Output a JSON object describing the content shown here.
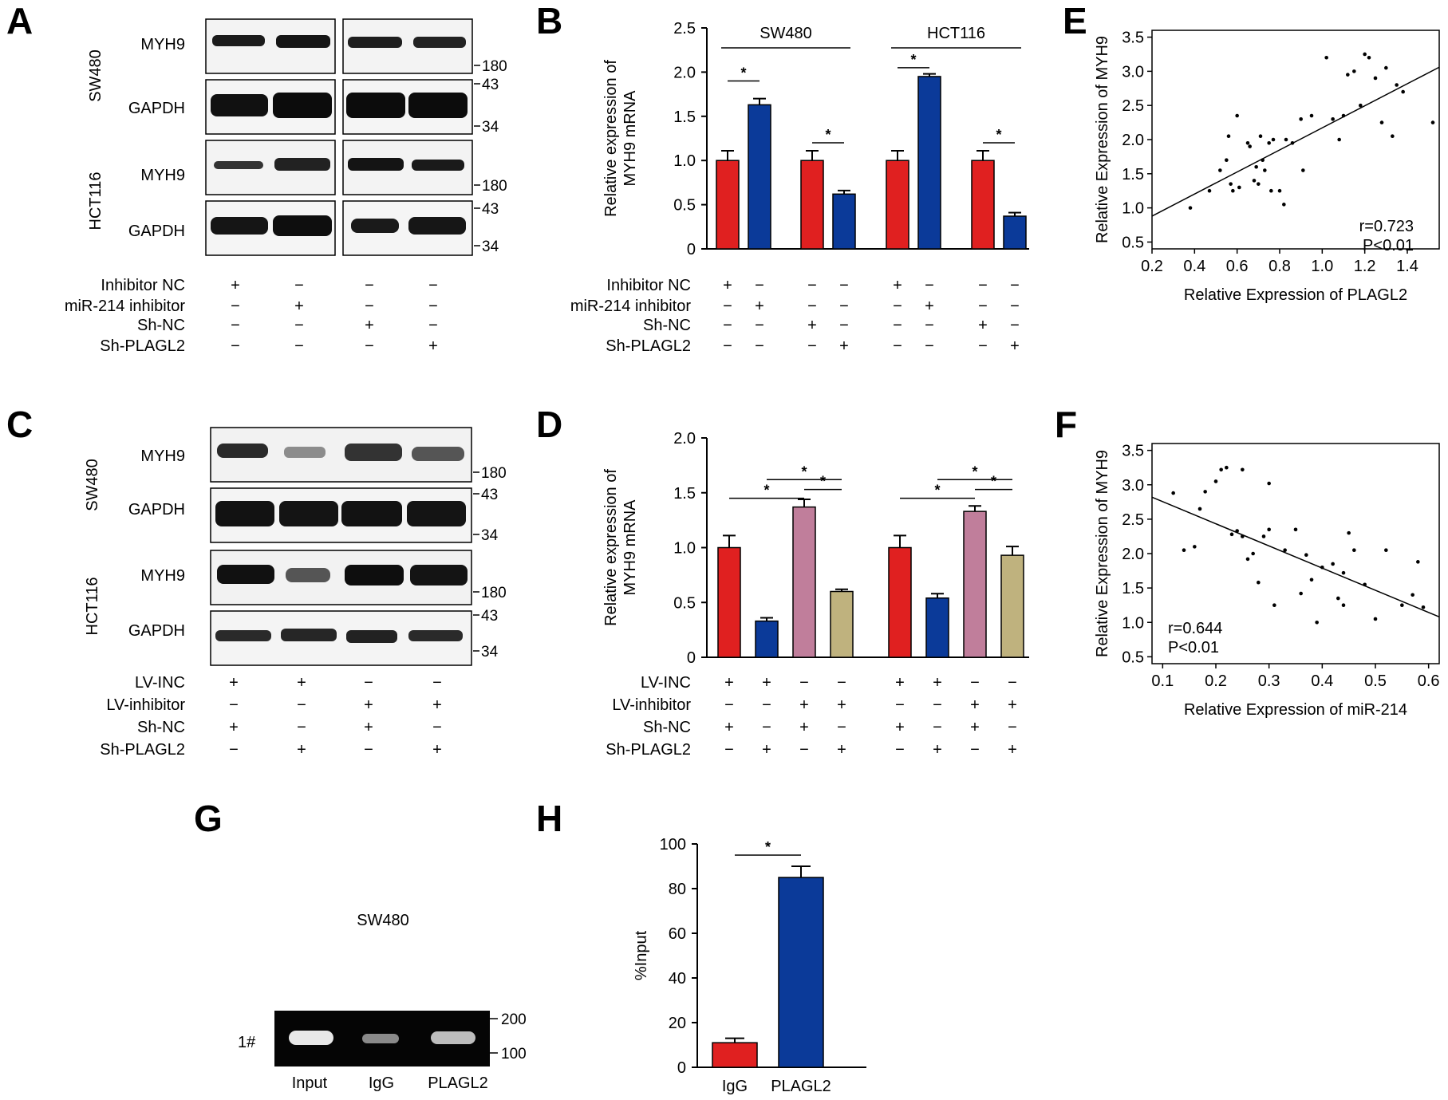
{
  "figure": {
    "panels": [
      "A",
      "B",
      "C",
      "D",
      "E",
      "F",
      "G",
      "H"
    ]
  },
  "colors": {
    "red": "#e02020",
    "blue": "#0b3a99",
    "pink": "#c07e9b",
    "tan": "#bfb27e"
  },
  "blots": {
    "A": {
      "cell_lines": [
        "SW480",
        "HCT116"
      ],
      "proteins": [
        "MYH9",
        "GAPDH"
      ],
      "mw_markers": [
        "180",
        "43",
        "34"
      ],
      "conditions": [
        {
          "label": "Inhibitor NC",
          "signs": [
            "+",
            "−",
            "−",
            "−"
          ]
        },
        {
          "label": "miR-214 inhibitor",
          "signs": [
            "−",
            "+",
            "−",
            "−"
          ]
        },
        {
          "label": "Sh-NC",
          "signs": [
            "−",
            "−",
            "+",
            "−"
          ]
        },
        {
          "label": "Sh-PLAGL2",
          "signs": [
            "−",
            "−",
            "−",
            "+"
          ]
        }
      ]
    },
    "C": {
      "cell_lines": [
        "SW480",
        "HCT116"
      ],
      "proteins": [
        "MYH9",
        "GAPDH"
      ],
      "mw_markers": [
        "180",
        "43",
        "34"
      ],
      "conditions": [
        {
          "label": "LV-INC",
          "signs": [
            "+",
            "+",
            "−",
            "−"
          ]
        },
        {
          "label": "LV-inhibitor",
          "signs": [
            "−",
            "−",
            "+",
            "+"
          ]
        },
        {
          "label": "Sh-NC",
          "signs": [
            "+",
            "−",
            "+",
            "−"
          ]
        },
        {
          "label": "Sh-PLAGL2",
          "signs": [
            "−",
            "+",
            "−",
            "+"
          ]
        }
      ]
    },
    "G": {
      "title": "SW480",
      "row_label": "1#",
      "lanes": [
        "Input",
        "IgG",
        "PLAGL2"
      ],
      "markers": [
        "200",
        "100"
      ]
    }
  },
  "chart_data": [
    {
      "panel": "B",
      "type": "bar",
      "ylabel_lines": [
        "Relative expression of",
        "MYH9 mRNA"
      ],
      "ylim": [
        0,
        2.5
      ],
      "yticks": [
        "0",
        "0.5",
        "1.0",
        "1.5",
        "2.0",
        "2.5"
      ],
      "group_labels": [
        "SW480",
        "HCT116"
      ],
      "bars": [
        {
          "value": 1.0,
          "error": 0.11,
          "color": "red"
        },
        {
          "value": 1.63,
          "error": 0.07,
          "color": "blue"
        },
        {
          "value": 1.0,
          "error": 0.11,
          "color": "red"
        },
        {
          "value": 0.62,
          "error": 0.04,
          "color": "blue"
        },
        {
          "value": 1.0,
          "error": 0.11,
          "color": "red"
        },
        {
          "value": 1.95,
          "error": 0.03,
          "color": "blue"
        },
        {
          "value": 1.0,
          "error": 0.11,
          "color": "red"
        },
        {
          "value": 0.37,
          "error": 0.04,
          "color": "blue"
        }
      ],
      "significance": [
        {
          "from": 0,
          "to": 1,
          "level": 1.9,
          "label": "*"
        },
        {
          "from": 2,
          "to": 3,
          "level": 1.2,
          "label": "*"
        },
        {
          "from": 4,
          "to": 5,
          "level": 2.05,
          "label": "*"
        },
        {
          "from": 6,
          "to": 7,
          "level": 1.2,
          "label": "*"
        }
      ],
      "conditions": [
        {
          "label": "Inhibitor NC",
          "signs": [
            "+",
            "−",
            "−",
            "−",
            "+",
            "−",
            "−",
            "−"
          ]
        },
        {
          "label": "miR-214 inhibitor",
          "signs": [
            "−",
            "+",
            "−",
            "−",
            "−",
            "+",
            "−",
            "−"
          ]
        },
        {
          "label": "Sh-NC",
          "signs": [
            "−",
            "−",
            "+",
            "−",
            "−",
            "−",
            "+",
            "−"
          ]
        },
        {
          "label": "Sh-PLAGL2",
          "signs": [
            "−",
            "−",
            "−",
            "+",
            "−",
            "−",
            "−",
            "+"
          ]
        }
      ]
    },
    {
      "panel": "D",
      "type": "bar",
      "ylabel_lines": [
        "Relative expression of",
        "MYH9 mRNA"
      ],
      "ylim": [
        0,
        2.0
      ],
      "yticks": [
        "0",
        "0.5",
        "1.0",
        "1.5",
        "2.0"
      ],
      "bars": [
        {
          "value": 1.0,
          "error": 0.11,
          "color": "red"
        },
        {
          "value": 0.33,
          "error": 0.03,
          "color": "blue"
        },
        {
          "value": 1.37,
          "error": 0.07,
          "color": "pink"
        },
        {
          "value": 0.6,
          "error": 0.02,
          "color": "tan"
        },
        {
          "value": 1.0,
          "error": 0.11,
          "color": "red"
        },
        {
          "value": 0.54,
          "error": 0.04,
          "color": "blue"
        },
        {
          "value": 1.33,
          "error": 0.05,
          "color": "pink"
        },
        {
          "value": 0.93,
          "error": 0.08,
          "color": "tan"
        }
      ],
      "significance": [
        {
          "from": 0,
          "to": 2,
          "level": 1.45,
          "label": "*"
        },
        {
          "from": 1,
          "to": 3,
          "level": 1.62,
          "label": "*"
        },
        {
          "from": 2,
          "to": 3,
          "level": 1.53,
          "label": "*"
        },
        {
          "from": 4,
          "to": 6,
          "level": 1.45,
          "label": "*"
        },
        {
          "from": 5,
          "to": 7,
          "level": 1.62,
          "label": "*"
        },
        {
          "from": 6,
          "to": 7,
          "level": 1.53,
          "label": "*"
        }
      ],
      "conditions": [
        {
          "label": "LV-INC",
          "signs": [
            "+",
            "+",
            "−",
            "−",
            "+",
            "+",
            "−",
            "−"
          ]
        },
        {
          "label": "LV-inhibitor",
          "signs": [
            "−",
            "−",
            "+",
            "+",
            "−",
            "−",
            "+",
            "+"
          ]
        },
        {
          "label": "Sh-NC",
          "signs": [
            "+",
            "−",
            "+",
            "−",
            "+",
            "−",
            "+",
            "−"
          ]
        },
        {
          "label": "Sh-PLAGL2",
          "signs": [
            "−",
            "+",
            "−",
            "+",
            "−",
            "+",
            "−",
            "+"
          ]
        }
      ]
    },
    {
      "panel": "E",
      "type": "scatter",
      "xlabel": "Relative Expression of PLAGL2",
      "ylabel": "Relative Expression of MYH9",
      "xlim": [
        0.2,
        1.55
      ],
      "ylim": [
        0.4,
        3.6
      ],
      "xticks": [
        "0.2",
        "0.4",
        "0.6",
        "0.8",
        "1.0",
        "1.2",
        "1.4"
      ],
      "yticks": [
        "0.5",
        "1.0",
        "1.5",
        "2.0",
        "2.5",
        "3.0",
        "3.5"
      ],
      "stats": [
        "r=0.723",
        "P<0.01"
      ],
      "fit": {
        "x": [
          0.2,
          1.55
        ],
        "y": [
          0.88,
          3.06
        ]
      },
      "points": [
        [
          0.38,
          1.0
        ],
        [
          0.47,
          1.25
        ],
        [
          0.52,
          1.55
        ],
        [
          0.55,
          1.7
        ],
        [
          0.56,
          2.05
        ],
        [
          0.57,
          1.35
        ],
        [
          0.58,
          1.25
        ],
        [
          0.6,
          2.35
        ],
        [
          0.61,
          1.3
        ],
        [
          0.65,
          1.95
        ],
        [
          0.66,
          1.9
        ],
        [
          0.68,
          1.4
        ],
        [
          0.69,
          1.6
        ],
        [
          0.7,
          1.35
        ],
        [
          0.71,
          2.05
        ],
        [
          0.72,
          1.7
        ],
        [
          0.73,
          1.55
        ],
        [
          0.75,
          1.95
        ],
        [
          0.76,
          1.25
        ],
        [
          0.77,
          2.0
        ],
        [
          0.8,
          1.25
        ],
        [
          0.82,
          1.05
        ],
        [
          0.83,
          2.0
        ],
        [
          0.86,
          1.95
        ],
        [
          0.9,
          2.3
        ],
        [
          0.91,
          1.55
        ],
        [
          0.95,
          2.35
        ],
        [
          1.02,
          3.2
        ],
        [
          1.05,
          2.3
        ],
        [
          1.08,
          2.0
        ],
        [
          1.1,
          2.35
        ],
        [
          1.12,
          2.95
        ],
        [
          1.15,
          3.0
        ],
        [
          1.18,
          2.5
        ],
        [
          1.2,
          3.25
        ],
        [
          1.22,
          3.2
        ],
        [
          1.25,
          2.9
        ],
        [
          1.28,
          2.25
        ],
        [
          1.3,
          3.05
        ],
        [
          1.33,
          2.05
        ],
        [
          1.35,
          2.8
        ],
        [
          1.38,
          2.7
        ],
        [
          1.52,
          2.25
        ]
      ]
    },
    {
      "panel": "F",
      "type": "scatter",
      "xlabel": "Relative Expression of miR-214",
      "ylabel": "Relative Expression of MYH9",
      "xlim": [
        0.08,
        0.62
      ],
      "ylim": [
        0.4,
        3.6
      ],
      "xticks": [
        "0.1",
        "0.2",
        "0.3",
        "0.4",
        "0.5",
        "0.6"
      ],
      "yticks": [
        "0.5",
        "1.0",
        "1.5",
        "2.0",
        "2.5",
        "3.0",
        "3.5"
      ],
      "stats": [
        "r=0.644",
        "P<0.01"
      ],
      "fit": {
        "x": [
          0.08,
          0.62
        ],
        "y": [
          2.82,
          1.08
        ]
      },
      "points": [
        [
          0.12,
          2.88
        ],
        [
          0.14,
          2.05
        ],
        [
          0.16,
          2.1
        ],
        [
          0.17,
          2.65
        ],
        [
          0.18,
          2.9
        ],
        [
          0.2,
          3.05
        ],
        [
          0.21,
          3.22
        ],
        [
          0.22,
          3.25
        ],
        [
          0.23,
          2.28
        ],
        [
          0.24,
          2.33
        ],
        [
          0.25,
          3.22
        ],
        [
          0.25,
          2.25
        ],
        [
          0.26,
          1.92
        ],
        [
          0.27,
          2.0
        ],
        [
          0.28,
          1.58
        ],
        [
          0.29,
          2.25
        ],
        [
          0.3,
          3.02
        ],
        [
          0.3,
          2.35
        ],
        [
          0.31,
          1.25
        ],
        [
          0.33,
          2.05
        ],
        [
          0.35,
          2.35
        ],
        [
          0.36,
          1.42
        ],
        [
          0.37,
          1.98
        ],
        [
          0.38,
          1.62
        ],
        [
          0.39,
          1.0
        ],
        [
          0.4,
          1.8
        ],
        [
          0.42,
          1.85
        ],
        [
          0.43,
          1.35
        ],
        [
          0.44,
          1.25
        ],
        [
          0.44,
          1.72
        ],
        [
          0.45,
          2.3
        ],
        [
          0.46,
          2.05
        ],
        [
          0.48,
          1.55
        ],
        [
          0.5,
          1.05
        ],
        [
          0.52,
          2.05
        ],
        [
          0.55,
          1.25
        ],
        [
          0.57,
          1.4
        ],
        [
          0.58,
          1.88
        ],
        [
          0.59,
          1.22
        ]
      ]
    },
    {
      "panel": "H",
      "type": "bar",
      "ylabel": "%Input",
      "ylim": [
        0,
        100
      ],
      "yticks": [
        "0",
        "20",
        "40",
        "60",
        "80",
        "100"
      ],
      "categories": [
        "IgG",
        "PLAGL2"
      ],
      "bars": [
        {
          "value": 11,
          "error": 2,
          "color": "red"
        },
        {
          "value": 85,
          "error": 5,
          "color": "blue"
        }
      ],
      "significance": [
        {
          "from": 0,
          "to": 1,
          "level": 95,
          "label": "*"
        }
      ]
    }
  ]
}
